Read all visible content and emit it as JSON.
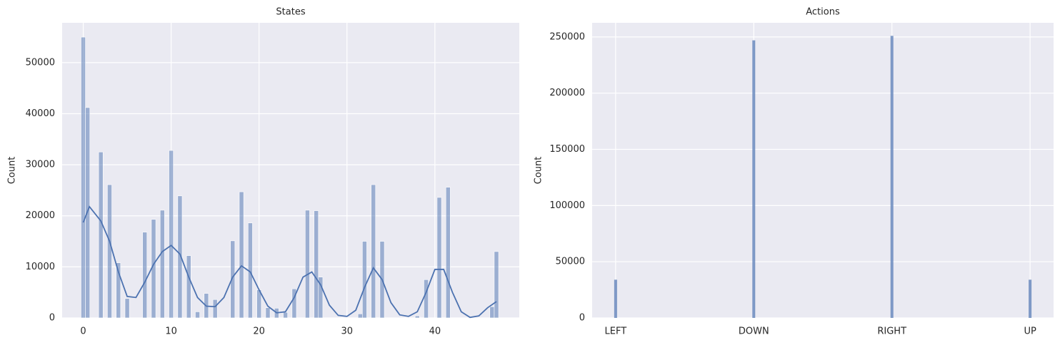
{
  "chart_data": [
    {
      "type": "histogram",
      "title": "States",
      "ylabel": "Count",
      "bins": [
        -0.25,
        0.25,
        0.75,
        1.25,
        1.75,
        2.25,
        2.75,
        3.25,
        3.75,
        4.25,
        4.75,
        5.25,
        5.75,
        6.25,
        6.75,
        7.25,
        7.75,
        8.25,
        8.75,
        9.25,
        9.75,
        10.25,
        10.75,
        11.25,
        11.75,
        12.25,
        12.75,
        13.25,
        13.75,
        14.25,
        14.75,
        15.25,
        15.75,
        16.25,
        16.75,
        17.25,
        17.75,
        18.25,
        18.75,
        19.25,
        19.75,
        20.25,
        20.75,
        21.25,
        21.75,
        22.25,
        22.75,
        23.25,
        23.75,
        24.25,
        24.75,
        25.25,
        25.75,
        26.25,
        26.75,
        27.25,
        27.75,
        28.25,
        28.75,
        29.25,
        29.75,
        30.25,
        30.75,
        31.25,
        31.75,
        32.25,
        32.75,
        33.25,
        33.75,
        34.25,
        34.75,
        35.25,
        35.75,
        36.25,
        36.75,
        37.25,
        37.75,
        38.25,
        38.75,
        39.25,
        39.75,
        40.25,
        40.75,
        41.25,
        41.75,
        42.25,
        42.75,
        43.25,
        43.75,
        44.25,
        44.75,
        45.25,
        45.75,
        46.25,
        46.75,
        47.25
      ],
      "values": [
        55000,
        41200,
        0,
        0,
        32500,
        0,
        26100,
        0,
        10800,
        0,
        3800,
        0,
        0,
        0,
        16800,
        0,
        19300,
        0,
        21100,
        0,
        32800,
        0,
        23900,
        0,
        12200,
        0,
        1200,
        0,
        4800,
        0,
        3600,
        0,
        0,
        0,
        15100,
        0,
        24700,
        0,
        18600,
        0,
        5500,
        0,
        2000,
        0,
        1900,
        0,
        1100,
        0,
        5700,
        0,
        0,
        21100,
        0,
        21000,
        8000,
        0,
        0,
        0,
        0,
        0,
        0,
        0,
        0,
        800,
        15000,
        0,
        26100,
        0,
        15000,
        0,
        0,
        0,
        0,
        0,
        0,
        0,
        400,
        0,
        7500,
        0,
        0,
        23600,
        0,
        25600,
        0,
        0,
        0,
        0,
        0,
        0,
        0,
        0,
        0,
        2200,
        13000
      ],
      "color": "#4c72b0",
      "kde": {
        "x": [
          0,
          0.7,
          2,
          3,
          4,
          5,
          6,
          7,
          8,
          9,
          10,
          11,
          12,
          13,
          14,
          15,
          16,
          17,
          18,
          19,
          20,
          21,
          22,
          23,
          24,
          25,
          26,
          27,
          28,
          29,
          30,
          31,
          32,
          33,
          34,
          35,
          36,
          37,
          38,
          39,
          40,
          41,
          42,
          43,
          44,
          45,
          46,
          47
        ],
        "values": [
          18700,
          21800,
          19000,
          15000,
          9000,
          4200,
          4000,
          7000,
          10500,
          13000,
          14200,
          12500,
          8000,
          4000,
          2300,
          2200,
          4000,
          8000,
          10200,
          9000,
          5500,
          2300,
          1000,
          1200,
          4000,
          8000,
          9000,
          6500,
          2500,
          500,
          300,
          1500,
          6000,
          9800,
          7500,
          3000,
          600,
          300,
          1200,
          5000,
          9500,
          9500,
          5000,
          1200,
          100,
          400,
          2000,
          3200
        ]
      },
      "xlim": [
        -2.4,
        49.6
      ],
      "ylim": [
        0,
        57800
      ],
      "xticks": [
        0,
        10,
        20,
        30,
        40
      ],
      "yticks": [
        0,
        10000,
        20000,
        30000,
        40000,
        50000
      ],
      "grid": true
    },
    {
      "type": "bar",
      "title": "Actions",
      "ylabel": "Count",
      "categories": [
        "LEFT",
        "DOWN",
        "RIGHT",
        "UP"
      ],
      "values": [
        34000,
        247000,
        251000,
        34000
      ],
      "color": "#4c72b0",
      "ylim": [
        0,
        262600
      ],
      "yticks": [
        0,
        50000,
        100000,
        150000,
        200000,
        250000
      ],
      "grid": true
    }
  ]
}
